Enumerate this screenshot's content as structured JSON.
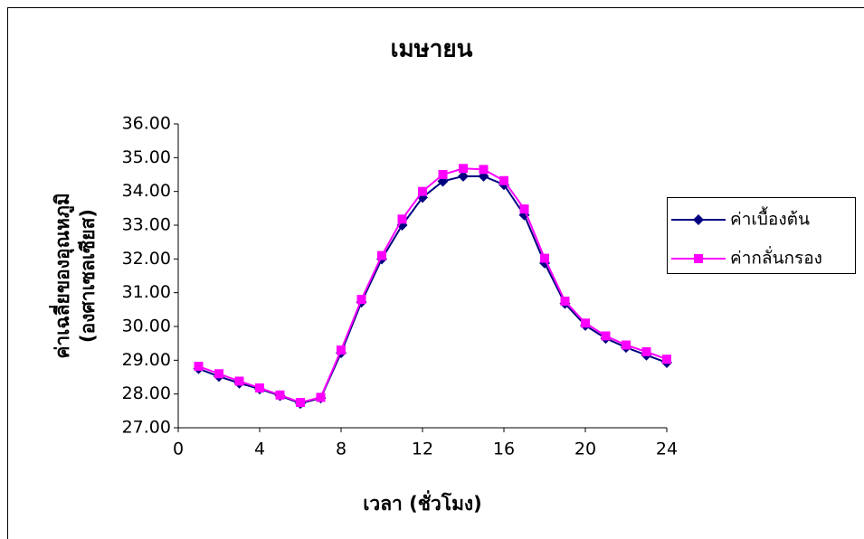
{
  "chart_data": {
    "type": "line",
    "title": "เมษายน",
    "x_label": "เวลา (ชั่วโมง)",
    "y_label": [
      "ค่าเฉลี่ยของอุณหภูมิ",
      "(องศาเซลเซียส)"
    ],
    "x": [
      1,
      2,
      3,
      4,
      5,
      6,
      7,
      8,
      9,
      10,
      11,
      12,
      13,
      14,
      15,
      16,
      17,
      18,
      19,
      20,
      21,
      22,
      23,
      24
    ],
    "series": [
      {
        "name": "ค่าเบื้องต้น",
        "color": "#000080",
        "marker": "diamond",
        "values": [
          28.75,
          28.52,
          28.32,
          28.15,
          27.95,
          27.72,
          27.88,
          29.22,
          30.72,
          32.0,
          33.0,
          33.82,
          34.3,
          34.45,
          34.45,
          34.2,
          33.3,
          31.88,
          30.68,
          30.03,
          29.65,
          29.38,
          29.15,
          28.93
        ]
      },
      {
        "name": "ค่ากลั่นกรอง",
        "color": "#ff00ff",
        "marker": "square",
        "values": [
          28.82,
          28.6,
          28.38,
          28.18,
          27.97,
          27.75,
          27.9,
          29.3,
          30.8,
          32.1,
          33.18,
          34.0,
          34.5,
          34.68,
          34.65,
          34.32,
          33.48,
          32.02,
          30.75,
          30.1,
          29.72,
          29.45,
          29.25,
          29.03
        ]
      }
    ],
    "xlim": [
      0,
      24
    ],
    "xticks": [
      0,
      4,
      8,
      12,
      16,
      20,
      24
    ],
    "ylim": [
      27,
      36
    ],
    "yticks": [
      {
        "value": 27,
        "label": "27.00"
      },
      {
        "value": 28,
        "label": "28.00"
      },
      {
        "value": 29,
        "label": "29.00"
      },
      {
        "value": 30,
        "label": "30.00"
      },
      {
        "value": 31,
        "label": "31.00"
      },
      {
        "value": 32,
        "label": "32.00"
      },
      {
        "value": 33,
        "label": "33.00"
      },
      {
        "value": 34,
        "label": "34.00"
      },
      {
        "value": 35,
        "label": "35.00"
      },
      {
        "value": 36,
        "label": "36.00"
      }
    ],
    "grid": false,
    "legend": "right"
  }
}
